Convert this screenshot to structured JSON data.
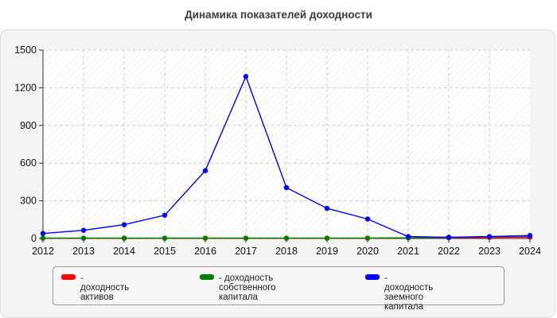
{
  "title": "Динамика показателей доходности",
  "chart_data": {
    "type": "line",
    "x": [
      "2012",
      "2013",
      "2014",
      "2015",
      "2016",
      "2017",
      "2018",
      "2019",
      "2020",
      "2021",
      "2022",
      "2023",
      "2024"
    ],
    "ylim": [
      0,
      1500
    ],
    "yticks": [
      0,
      300,
      600,
      900,
      1200,
      1500
    ],
    "grid": true,
    "legend_position": "bottom",
    "series": [
      {
        "name": "- доходность активов",
        "color": "#ff0000",
        "values": [
          2,
          2,
          2,
          2,
          2,
          2,
          2,
          2,
          2,
          5,
          6,
          8,
          10
        ]
      },
      {
        "name": "- доходность собственного\nкапитала",
        "color": "#008000",
        "values": [
          3,
          3,
          3,
          3,
          3,
          3,
          3,
          3,
          3,
          5,
          8,
          15,
          25
        ]
      },
      {
        "name": "- доходность заемного\nкапитала",
        "color": "#0000ff",
        "values": [
          40,
          65,
          110,
          185,
          540,
          1290,
          405,
          240,
          155,
          15,
          10,
          15,
          20
        ]
      }
    ]
  }
}
